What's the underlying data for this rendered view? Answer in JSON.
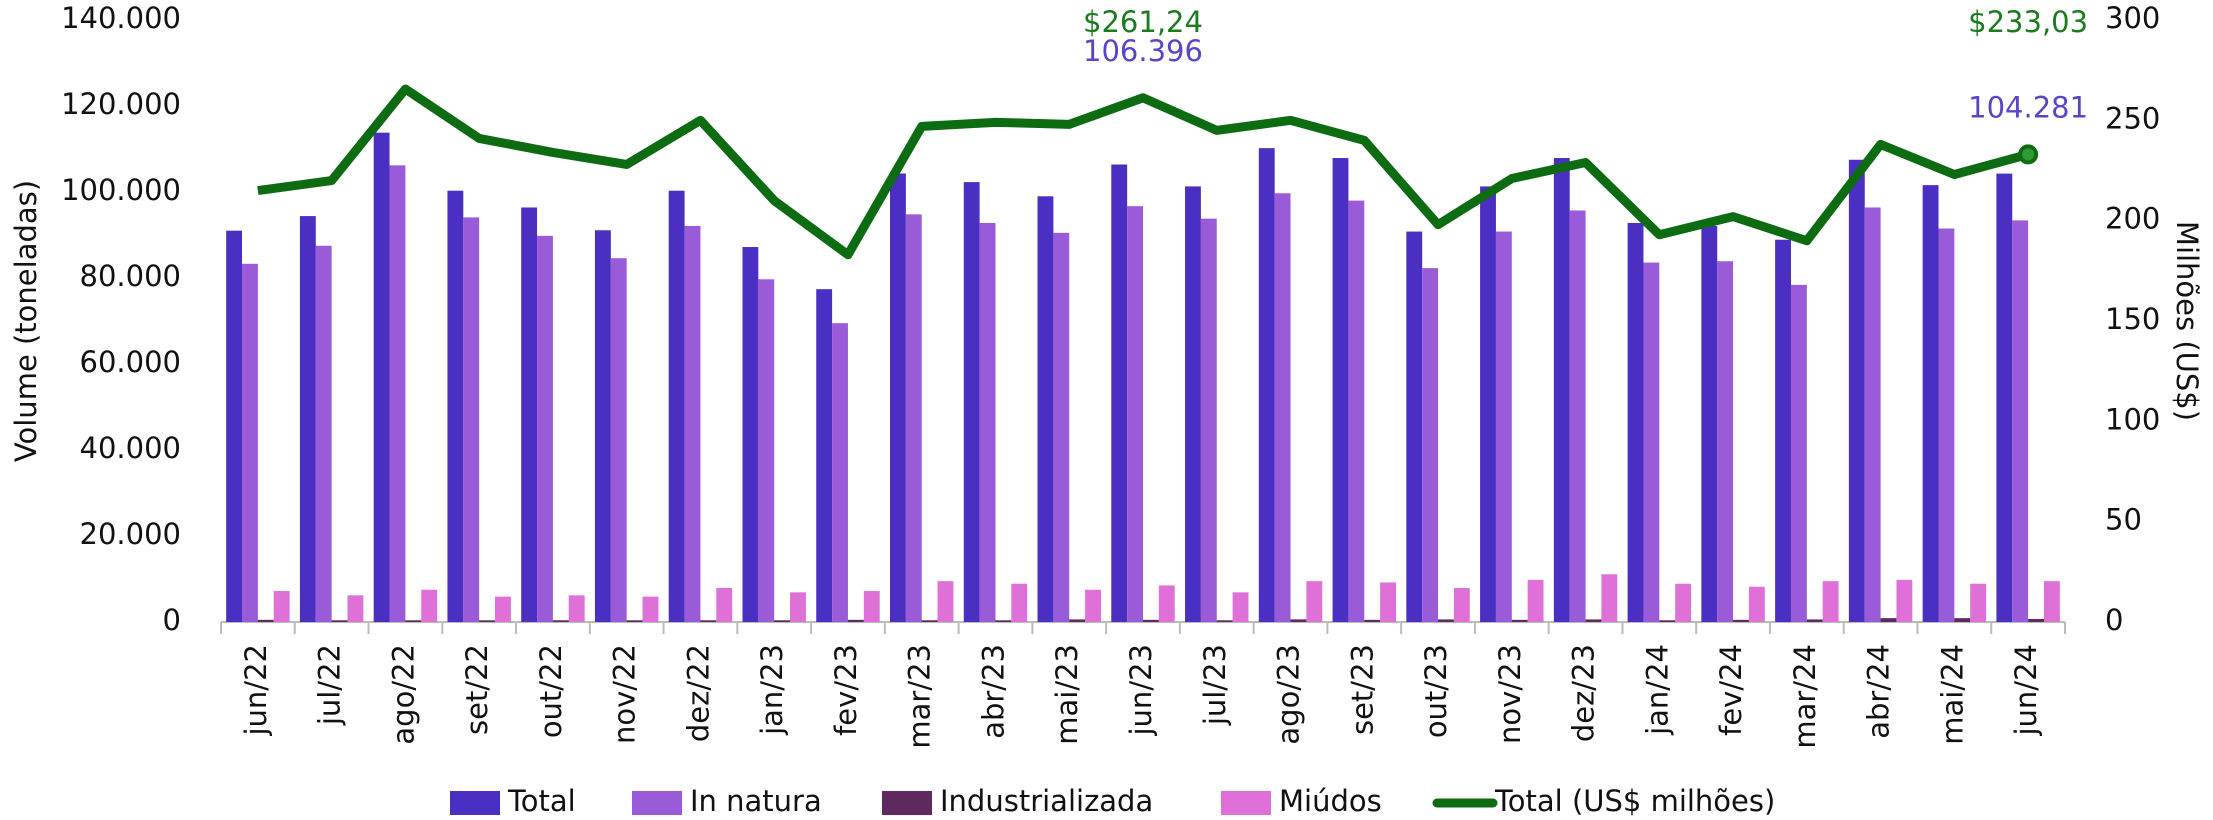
{
  "chart_data": {
    "type": "bar",
    "categories": [
      "jun/22",
      "jul/22",
      "ago/22",
      "set/22",
      "out/22",
      "nov/22",
      "dez/22",
      "jan/23",
      "fev/23",
      "mar/23",
      "abr/23",
      "mai/23",
      "jun/23",
      "jul/23",
      "ago/23",
      "set/23",
      "out/23",
      "nov/23",
      "dez/23",
      "jan/24",
      "fev/24",
      "mar/24",
      "abr/24",
      "mai/24",
      "jun/24"
    ],
    "y_label": "Volume (toneladas)",
    "y2_label": "Milhões (US$)",
    "ylim": [
      0,
      140000
    ],
    "yticks": [
      0,
      {
        "value": 20000,
        "label": "20.000"
      },
      {
        "value": 40000,
        "label": "40.000"
      },
      {
        "value": 60000,
        "label": "60.000"
      },
      {
        "value": 80000,
        "label": "80.000"
      },
      {
        "value": 100000,
        "label": "100.000"
      },
      {
        "value": 120000,
        "label": "120.000"
      },
      {
        "value": 140000,
        "label": "140.000"
      }
    ],
    "y2lim": [
      0,
      300
    ],
    "y2ticks": [
      0,
      50,
      100,
      150,
      200,
      250,
      300
    ],
    "legend": "bottom",
    "series": [
      {
        "name": "Total",
        "type": "bar",
        "color": "#4a2fc2",
        "values": [
          91000,
          94400,
          113800,
          100300,
          96400,
          91100,
          100300,
          87200,
          77400,
          104300,
          102300,
          99000,
          106396,
          101300,
          110200,
          107900,
          90800,
          101300,
          107900,
          92800,
          92100,
          88900,
          107500,
          101600,
          104281
        ],
        "value_labels": [
          null,
          null,
          null,
          null,
          null,
          null,
          null,
          null,
          null,
          null,
          null,
          null,
          "106.396",
          null,
          null,
          null,
          null,
          null,
          null,
          null,
          null,
          null,
          null,
          null,
          "104.281"
        ]
      },
      {
        "name": "In natura",
        "type": "bar",
        "color": "#9a5bd8",
        "values": [
          83300,
          87500,
          106200,
          94100,
          89800,
          84600,
          92100,
          79700,
          69500,
          94800,
          92800,
          90500,
          96700,
          93800,
          99700,
          98000,
          82300,
          90800,
          95700,
          83600,
          83900,
          78400,
          96400,
          91500,
          93400
        ]
      },
      {
        "name": "Industrializada",
        "type": "bar",
        "color": "#5e2a5f",
        "values": [
          500,
          400,
          400,
          400,
          400,
          400,
          400,
          400,
          500,
          400,
          400,
          600,
          500,
          400,
          600,
          500,
          600,
          500,
          600,
          400,
          500,
          600,
          900,
          900,
          700
        ]
      },
      {
        "name": "Miúdos",
        "type": "bar",
        "color": "#de70d8",
        "values": [
          7200,
          6200,
          7500,
          5900,
          6200,
          5900,
          7900,
          6900,
          7200,
          9500,
          8900,
          7500,
          8500,
          6900,
          9500,
          9200,
          7900,
          9800,
          11100,
          8900,
          8200,
          9500,
          9800,
          8900,
          9500
        ]
      },
      {
        "name": "Total (US$ milhões)",
        "type": "line",
        "axis": "y2",
        "color": "#0d6b12",
        "values": [
          215,
          220,
          265.6,
          241,
          234,
          228,
          250,
          210,
          183,
          247,
          249,
          248,
          261.24,
          245,
          250,
          240,
          198,
          221,
          229,
          193,
          202,
          190,
          238,
          223,
          233.03
        ],
        "value_labels": [
          null,
          null,
          null,
          null,
          null,
          null,
          null,
          null,
          null,
          null,
          null,
          null,
          "$261,24",
          null,
          null,
          null,
          null,
          null,
          null,
          null,
          null,
          null,
          null,
          null,
          "$233,03"
        ]
      }
    ]
  }
}
